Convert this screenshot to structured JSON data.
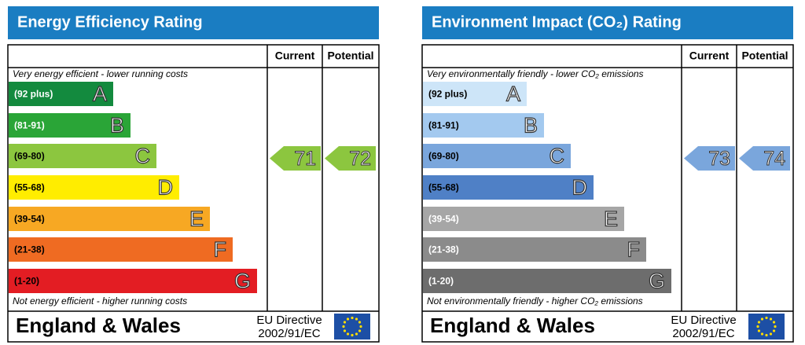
{
  "panels": [
    {
      "title": "Energy Efficiency Rating",
      "current_header": "Current",
      "potential_header": "Potential",
      "top_note": "Very energy efficient - lower running costs",
      "bottom_note": "Not energy efficient - higher running costs",
      "bands": [
        {
          "range": "(92 plus)",
          "letter": "A",
          "color": "#138a3e",
          "label_color": "#ffffff"
        },
        {
          "range": "(81-91)",
          "letter": "B",
          "color": "#2aa537",
          "label_color": "#ffffff"
        },
        {
          "range": "(69-80)",
          "letter": "C",
          "color": "#8cc63f",
          "label_color": "#000000"
        },
        {
          "range": "(55-68)",
          "letter": "D",
          "color": "#ffed00",
          "label_color": "#000000"
        },
        {
          "range": "(39-54)",
          "letter": "E",
          "color": "#f7a823",
          "label_color": "#000000"
        },
        {
          "range": "(21-38)",
          "letter": "F",
          "color": "#ef6b22",
          "label_color": "#000000"
        },
        {
          "range": "(1-20)",
          "letter": "G",
          "color": "#e31d23",
          "label_color": "#000000"
        }
      ],
      "current": {
        "value": 71,
        "color": "#8cc63f"
      },
      "potential": {
        "value": 72,
        "color": "#8cc63f"
      },
      "region": "England & Wales",
      "directive_line1": "EU Directive",
      "directive_line2": "2002/91/EC"
    },
    {
      "title": "Environment Impact (CO₂) Rating",
      "current_header": "Current",
      "potential_header": "Potential",
      "top_note": "Very environmentally friendly - lower CO₂ emissions",
      "bottom_note": "Not environmentally friendly - higher CO₂ emissions",
      "bands": [
        {
          "range": "(92 plus)",
          "letter": "A",
          "color": "#cde5f8",
          "label_color": "#000000"
        },
        {
          "range": "(81-91)",
          "letter": "B",
          "color": "#a3c9ef",
          "label_color": "#000000"
        },
        {
          "range": "(69-80)",
          "letter": "C",
          "color": "#7aa6dc",
          "label_color": "#000000"
        },
        {
          "range": "(55-68)",
          "letter": "D",
          "color": "#4f80c6",
          "label_color": "#000000"
        },
        {
          "range": "(39-54)",
          "letter": "E",
          "color": "#a6a6a6",
          "label_color": "#ffffff"
        },
        {
          "range": "(21-38)",
          "letter": "F",
          "color": "#8b8b8b",
          "label_color": "#ffffff"
        },
        {
          "range": "(1-20)",
          "letter": "G",
          "color": "#6d6d6d",
          "label_color": "#ffffff"
        }
      ],
      "current": {
        "value": 73,
        "color": "#7aa6dc"
      },
      "potential": {
        "value": 74,
        "color": "#7aa6dc"
      },
      "region": "England & Wales",
      "directive_line1": "EU Directive",
      "directive_line2": "2002/91/EC"
    }
  ]
}
